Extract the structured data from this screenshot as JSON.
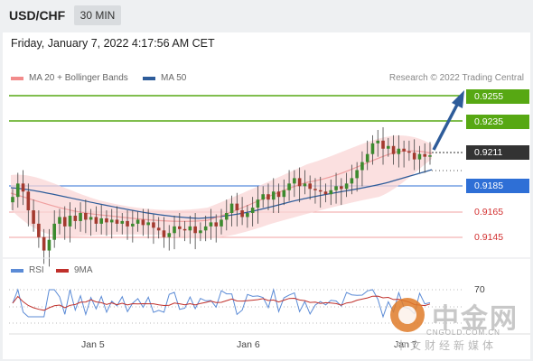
{
  "header": {
    "symbol": "USD/CHF",
    "timeframe": "30 MIN"
  },
  "datetime": "Friday, January 7, 2022 4:17:56 AM CET",
  "legend": {
    "ma20_label": "MA 20 + Bollinger Bands",
    "ma20_color": "#f28b8b",
    "ma50_label": "MA 50",
    "ma50_color": "#2e5c9a"
  },
  "copyright": "Research © 2022 Trading Central",
  "levels": [
    {
      "label": "0.9255",
      "style": "green",
      "value": 0.9255
    },
    {
      "label": "0.9235",
      "style": "green",
      "value": 0.9235
    },
    {
      "label": "0.9211",
      "style": "dark",
      "value": 0.9211
    },
    {
      "label": "0.9185",
      "style": "blue",
      "value": 0.9185
    },
    {
      "label": "0.9165",
      "style": "plain",
      "value": 0.9165
    },
    {
      "label": "0.9145",
      "style": "plain",
      "value": 0.9145
    }
  ],
  "rsi_legend": {
    "rsi_label": "RSI",
    "rsi_color": "#5b8bd6",
    "ma_label": "9MA",
    "ma_color": "#c0302b"
  },
  "rsi_level_label": "70",
  "x_axis": [
    "Jan 5",
    "Jan 6",
    "Jan 7"
  ],
  "chart_data": {
    "type": "candlestick",
    "price_range": [
      0.9135,
      0.9265
    ],
    "resistance_levels": [
      0.9255,
      0.9235
    ],
    "current_price": 0.9211,
    "support_levels": [
      0.9185,
      0.9165,
      0.9145
    ],
    "forecast": "up toward 0.9255",
    "closes": [
      0.918,
      0.919,
      0.9184,
      0.917,
      0.916,
      0.915,
      0.914,
      0.9148,
      0.916,
      0.9165,
      0.9158,
      0.9166,
      0.9162,
      0.9168,
      0.9163,
      0.9165,
      0.916,
      0.9164,
      0.9161,
      0.9163,
      0.916,
      0.9162,
      0.9158,
      0.916,
      0.9163,
      0.9159,
      0.9161,
      0.9157,
      0.9155,
      0.915,
      0.9153,
      0.9158,
      0.9156,
      0.9155,
      0.9158,
      0.9153,
      0.9155,
      0.9158,
      0.9161,
      0.9158,
      0.9163,
      0.9168,
      0.9175,
      0.917,
      0.9165,
      0.9168,
      0.9172,
      0.9178,
      0.9182,
      0.9178,
      0.9184,
      0.918,
      0.9185,
      0.919,
      0.9194,
      0.9188,
      0.919,
      0.9186,
      0.9185,
      0.9184,
      0.9182,
      0.9185,
      0.9188,
      0.9186,
      0.919,
      0.9194,
      0.92,
      0.9206,
      0.9212,
      0.922,
      0.9222,
      0.9216,
      0.9218,
      0.9212,
      0.9216,
      0.9214,
      0.9213,
      0.9208,
      0.9212,
      0.921,
      0.9211
    ],
    "rsi_overbought": 70
  },
  "watermark": {
    "brand": "中金网",
    "site": "CNGOLD.COM.CN",
    "sub": "中文财经新媒体"
  }
}
